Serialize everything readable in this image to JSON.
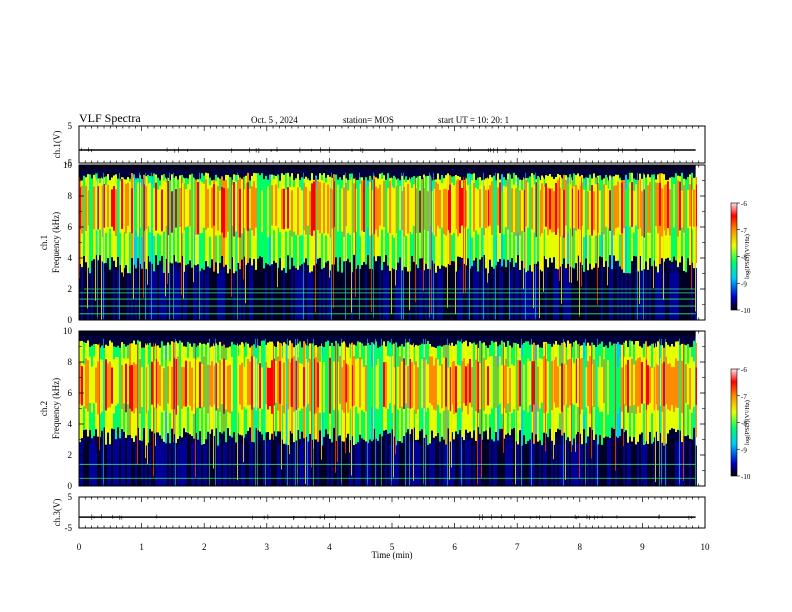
{
  "header": {
    "title": "VLF Spectra",
    "date": "Oct. 5 , 2024",
    "station": "station= MOS",
    "start": "start UT =  10: 20: 1"
  },
  "chart_data": [
    {
      "type": "line",
      "panel": "ch1-waveform",
      "ylabel": "ch.1(V)",
      "ylim": [
        -5,
        5
      ],
      "yticks": [
        "5",
        "-5"
      ],
      "xlim": [
        0,
        10
      ],
      "series": [
        {
          "y_level": -1.5,
          "color": "#000000"
        }
      ]
    },
    {
      "type": "heatmap",
      "panel": "ch1-spectrogram",
      "ylabel": "ch.1\nFrequency (kHz)",
      "ylim": [
        0,
        10
      ],
      "yticks": [
        "0",
        "2",
        "4",
        "6",
        "8",
        "10"
      ],
      "xlim": [
        0,
        9.85
      ],
      "colorbar": {
        "label": "log(PSD)(V²/Hz)",
        "ticks": [
          "-6",
          "-7",
          "-8",
          "-9",
          "-10"
        ],
        "range": [
          -10,
          -6
        ]
      },
      "band_kHz": [
        3.6,
        9.5
      ],
      "peak_kHz": 7.3,
      "line_levels_kHz": [
        0.4,
        0.9,
        1.35,
        1.75,
        2.0
      ]
    },
    {
      "type": "heatmap",
      "panel": "ch2-spectrogram",
      "ylabel": "ch.2\nFrequency (kHz)",
      "ylim": [
        0,
        10
      ],
      "yticks": [
        "0",
        "2",
        "4",
        "6",
        "8",
        "10"
      ],
      "xlim": [
        0,
        9.85
      ],
      "colorbar": {
        "label": "log(PSD)(V²/Hz)",
        "ticks": [
          "-6",
          "-7",
          "-8",
          "-9",
          "-10"
        ],
        "range": [
          -10,
          -6
        ]
      },
      "band_kHz": [
        3.2,
        9.4
      ],
      "peak_kHz": 6.6,
      "line_levels_kHz": [
        0.5,
        1.4
      ]
    },
    {
      "type": "line",
      "panel": "ch3-waveform",
      "ylabel": "ch.3(V)",
      "ylim": [
        -5,
        5
      ],
      "yticks": [
        "5",
        "-5"
      ],
      "xlim": [
        0,
        10
      ],
      "xlabel": "Time (min)",
      "xticks": [
        "0",
        "1",
        "2",
        "3",
        "4",
        "5",
        "6",
        "7",
        "8",
        "9",
        "10"
      ],
      "series": [
        {
          "y_level": -1.5,
          "color": "#000000"
        }
      ]
    }
  ]
}
